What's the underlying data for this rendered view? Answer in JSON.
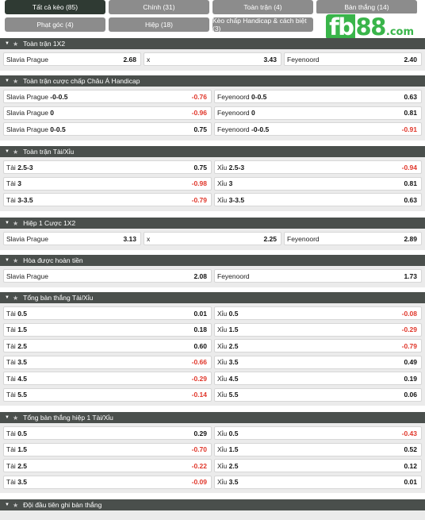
{
  "tabs": [
    {
      "label": "Tất cả kèo (85)",
      "active": true
    },
    {
      "label": "Chính (31)",
      "active": false
    },
    {
      "label": "Toàn trận (4)",
      "active": false
    },
    {
      "label": "Bàn thắng (14)",
      "active": false
    },
    {
      "label": "Phạt góc (4)",
      "active": false
    },
    {
      "label": "Hiệp (18)",
      "active": false
    },
    {
      "label": "Kèo chấp Handicap & cách biệt (3)",
      "active": false
    },
    {
      "label": "",
      "active": false
    }
  ],
  "logo": {
    "fb": "fb",
    "n88": "88",
    "com": ".com"
  },
  "colors": {
    "header": "#4a4f4c",
    "active_tab": "#2f3a33",
    "tab": "#8c8c8c",
    "negative": "#e0362a",
    "brand": "#39b54a"
  },
  "sections": [
    {
      "title": "Toàn trận 1X2",
      "rows": [
        [
          {
            "name": "Slavia Prague",
            "line": "",
            "odd": "2.68"
          },
          {
            "name": "x",
            "line": "",
            "odd": "3.43"
          },
          {
            "name": "Feyenoord",
            "line": "",
            "odd": "2.40"
          }
        ]
      ]
    },
    {
      "title": "Toàn trận cược chấp Châu Á Handicap",
      "rows": [
        [
          {
            "name": "Slavia Prague",
            "line": "-0-0.5",
            "odd": "-0.76"
          },
          {
            "name": "Feyenoord",
            "line": "0-0.5",
            "odd": "0.63"
          }
        ],
        [
          {
            "name": "Slavia Prague",
            "line": "0",
            "odd": "-0.96"
          },
          {
            "name": "Feyenoord",
            "line": "0",
            "odd": "0.81"
          }
        ],
        [
          {
            "name": "Slavia Prague",
            "line": "0-0.5",
            "odd": "0.75"
          },
          {
            "name": "Feyenoord",
            "line": "-0-0.5",
            "odd": "-0.91"
          }
        ]
      ]
    },
    {
      "title": "Toàn trận Tài/Xỉu",
      "rows": [
        [
          {
            "name": "Tài",
            "line": "2.5-3",
            "odd": "0.75"
          },
          {
            "name": "Xỉu",
            "line": "2.5-3",
            "odd": "-0.94"
          }
        ],
        [
          {
            "name": "Tài",
            "line": "3",
            "odd": "-0.98"
          },
          {
            "name": "Xỉu",
            "line": "3",
            "odd": "0.81"
          }
        ],
        [
          {
            "name": "Tài",
            "line": "3-3.5",
            "odd": "-0.79"
          },
          {
            "name": "Xỉu",
            "line": "3-3.5",
            "odd": "0.63"
          }
        ]
      ]
    },
    {
      "title": "Hiệp 1 Cược 1X2",
      "rows": [
        [
          {
            "name": "Slavia Prague",
            "line": "",
            "odd": "3.13"
          },
          {
            "name": "x",
            "line": "",
            "odd": "2.25"
          },
          {
            "name": "Feyenoord",
            "line": "",
            "odd": "2.89"
          }
        ]
      ]
    },
    {
      "title": "Hòa được hoàn tiền",
      "rows": [
        [
          {
            "name": "Slavia Prague",
            "line": "",
            "odd": "2.08"
          },
          {
            "name": "Feyenoord",
            "line": "",
            "odd": "1.73"
          }
        ]
      ]
    },
    {
      "title": "Tổng bàn thắng Tài/Xỉu",
      "rows": [
        [
          {
            "name": "Tài",
            "line": "0.5",
            "odd": "0.01"
          },
          {
            "name": "Xỉu",
            "line": "0.5",
            "odd": "-0.08"
          }
        ],
        [
          {
            "name": "Tài",
            "line": "1.5",
            "odd": "0.18"
          },
          {
            "name": "Xỉu",
            "line": "1.5",
            "odd": "-0.29"
          }
        ],
        [
          {
            "name": "Tài",
            "line": "2.5",
            "odd": "0.60"
          },
          {
            "name": "Xỉu",
            "line": "2.5",
            "odd": "-0.79"
          }
        ],
        [
          {
            "name": "Tài",
            "line": "3.5",
            "odd": "-0.66"
          },
          {
            "name": "Xỉu",
            "line": "3.5",
            "odd": "0.49"
          }
        ],
        [
          {
            "name": "Tài",
            "line": "4.5",
            "odd": "-0.29"
          },
          {
            "name": "Xỉu",
            "line": "4.5",
            "odd": "0.19"
          }
        ],
        [
          {
            "name": "Tài",
            "line": "5.5",
            "odd": "-0.14"
          },
          {
            "name": "Xỉu",
            "line": "5.5",
            "odd": "0.06"
          }
        ]
      ]
    },
    {
      "title": "Tổng bàn thắng hiệp 1 Tài/Xỉu",
      "rows": [
        [
          {
            "name": "Tài",
            "line": "0.5",
            "odd": "0.29"
          },
          {
            "name": "Xỉu",
            "line": "0.5",
            "odd": "-0.43"
          }
        ],
        [
          {
            "name": "Tài",
            "line": "1.5",
            "odd": "-0.70"
          },
          {
            "name": "Xỉu",
            "line": "1.5",
            "odd": "0.52"
          }
        ],
        [
          {
            "name": "Tài",
            "line": "2.5",
            "odd": "-0.22"
          },
          {
            "name": "Xỉu",
            "line": "2.5",
            "odd": "0.12"
          }
        ],
        [
          {
            "name": "Tài",
            "line": "3.5",
            "odd": "-0.09"
          },
          {
            "name": "Xỉu",
            "line": "3.5",
            "odd": "0.01"
          }
        ]
      ]
    },
    {
      "title": "Đội đầu tiên ghi bàn thắng",
      "rows": []
    }
  ]
}
